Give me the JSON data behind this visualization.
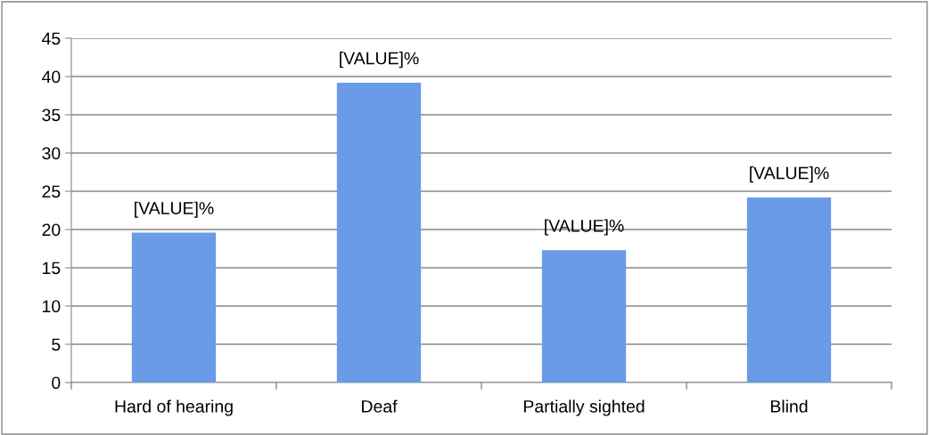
{
  "chart_data": {
    "type": "bar",
    "categories": [
      "Hard of hearing",
      "Deaf",
      "Partially sighted",
      "Blind"
    ],
    "values": [
      19.6,
      39.2,
      17.3,
      24.2
    ],
    "value_labels": [
      "[VALUE]%",
      "[VALUE]%",
      "[VALUE]%",
      "[VALUE]%"
    ],
    "color": "#6a9be6",
    "ylim": [
      0,
      45
    ],
    "yticks": [
      0,
      5,
      10,
      15,
      20,
      25,
      30,
      35,
      40,
      45
    ],
    "grid": "y",
    "legend": false
  }
}
